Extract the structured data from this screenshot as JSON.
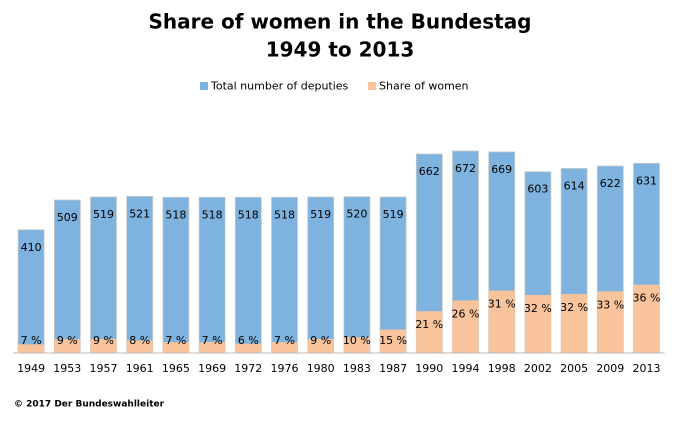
{
  "chart_data": {
    "type": "bar",
    "title": "Share of women in the Bundestag",
    "subtitle": "1949 to 2013",
    "categories": [
      "1949",
      "1953",
      "1957",
      "1961",
      "1965",
      "1969",
      "1972",
      "1976",
      "1980",
      "1983",
      "1987",
      "1990",
      "1994",
      "1998",
      "2002",
      "2005",
      "2009",
      "2013"
    ],
    "series": [
      {
        "name": "Total number of deputies",
        "color": "#7eb3df",
        "values": [
          410,
          509,
          519,
          521,
          518,
          518,
          518,
          518,
          519,
          520,
          519,
          662,
          672,
          669,
          603,
          614,
          622,
          631
        ]
      },
      {
        "name": "Share of women",
        "color": "#f9c39b",
        "values": [
          7,
          9,
          9,
          8,
          7,
          7,
          6,
          7,
          9,
          10,
          15,
          21,
          26,
          31,
          32,
          32,
          33,
          36
        ],
        "value_labels": [
          "7 %",
          "9 %",
          "9 %",
          "8 %",
          "7 %",
          "7 %",
          "6 %",
          "7 %",
          "9 %",
          "10 %",
          "15 %",
          "21 %",
          "26 %",
          "31 %",
          "32 %",
          "32 %",
          "33 %",
          "36 %"
        ]
      }
    ],
    "source": "© 2017 Der Bundeswahlleiter"
  }
}
